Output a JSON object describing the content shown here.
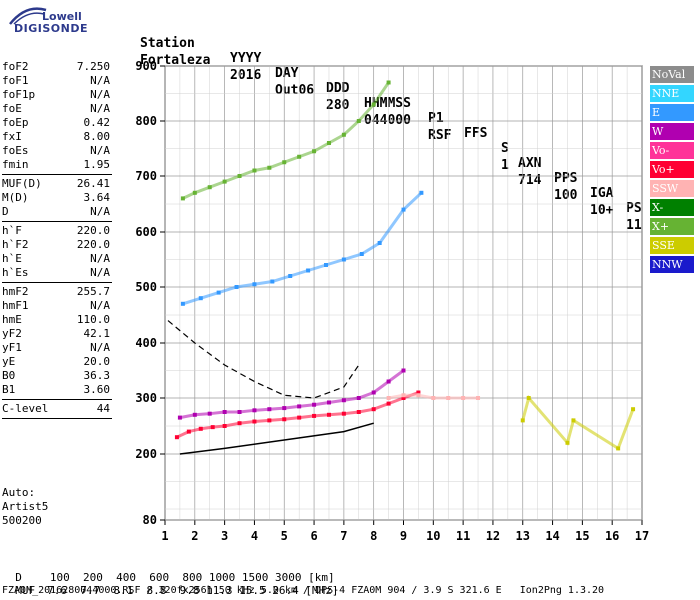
{
  "logo": {
    "top": "Lowell",
    "main": "DIGISONDE"
  },
  "header": {
    "row1": [
      "Station",
      "YYYY",
      "DAY",
      "DDD",
      "HHMMSS",
      "P1",
      "FFS",
      "S",
      "AXN",
      "PPS",
      "IGA",
      "PS"
    ],
    "row2": [
      "Fortaleza",
      "2016",
      "Out06",
      "280",
      "044000",
      "RSF",
      "",
      "1",
      "714",
      "100",
      "10+",
      "11"
    ]
  },
  "params": [
    {
      "label": "foF2",
      "value": "7.250"
    },
    {
      "label": "foF1",
      "value": "N/A"
    },
    {
      "label": "foF1p",
      "value": "N/A"
    },
    {
      "label": "foE",
      "value": "N/A"
    },
    {
      "label": "foEp",
      "value": "0.42"
    },
    {
      "label": "fxI",
      "value": "8.00"
    },
    {
      "label": "foEs",
      "value": "N/A"
    },
    {
      "label": "fmin",
      "value": "1.95"
    },
    {
      "label": "MUF(D)",
      "value": "26.41"
    },
    {
      "label": "M(D)",
      "value": "3.64"
    },
    {
      "label": "D",
      "value": "N/A"
    },
    {
      "label": "h`F",
      "value": "220.0"
    },
    {
      "label": "h`F2",
      "value": "220.0"
    },
    {
      "label": "h`E",
      "value": "N/A"
    },
    {
      "label": "h`Es",
      "value": "N/A"
    },
    {
      "label": "hmF2",
      "value": "255.7"
    },
    {
      "label": "hmF1",
      "value": "N/A"
    },
    {
      "label": "hmE",
      "value": "110.0"
    },
    {
      "label": "yF2",
      "value": "42.1"
    },
    {
      "label": "yF1",
      "value": "N/A"
    },
    {
      "label": "yE",
      "value": "20.0"
    },
    {
      "label": "B0",
      "value": "36.3"
    },
    {
      "label": "B1",
      "value": "3.60"
    },
    {
      "label": "C-level",
      "value": "44"
    }
  ],
  "auto": {
    "line1": "Auto:",
    "line2": "Artist5",
    "line3": "500200"
  },
  "legend": [
    {
      "label": "NoVal",
      "color": "#8c8c8c"
    },
    {
      "label": "NNE",
      "color": "#33d6ff"
    },
    {
      "label": "E",
      "color": "#3399ff"
    },
    {
      "label": "W",
      "color": "#b000b0"
    },
    {
      "label": "Vo-",
      "color": "#ff3399"
    },
    {
      "label": "Vo+",
      "color": "#ff0033"
    },
    {
      "label": "SSW",
      "color": "#ffb3b3"
    },
    {
      "label": "X-",
      "color": "#008000"
    },
    {
      "label": "X+",
      "color": "#66b333"
    },
    {
      "label": "SSE",
      "color": "#cccc00"
    },
    {
      "label": "NNW",
      "color": "#1a1acc"
    }
  ],
  "chart_data": {
    "type": "scatter",
    "title": "",
    "xlabel": "",
    "ylabel": "",
    "xlim": [
      1,
      17
    ],
    "ylim": [
      80,
      900
    ],
    "x_ticks": [
      1,
      2,
      3,
      4,
      5,
      6,
      7,
      8,
      9,
      10,
      11,
      12,
      13,
      14,
      15,
      16,
      17
    ],
    "y_ticks": [
      80,
      200,
      300,
      400,
      500,
      600,
      700,
      800,
      900
    ],
    "grid": true,
    "legend_position": "right",
    "series": [
      {
        "color": "#ff0033",
        "x": [
          1.4,
          1.8,
          2.2,
          2.6,
          3.0,
          3.5,
          4.0,
          4.5,
          5.0,
          5.5,
          6.0,
          6.5,
          7.0,
          7.5,
          8.0,
          8.5,
          9.0,
          9.5
        ],
        "y": [
          230,
          240,
          245,
          248,
          250,
          255,
          258,
          260,
          262,
          265,
          268,
          270,
          272,
          275,
          280,
          290,
          300,
          310
        ]
      },
      {
        "color": "#b000b0",
        "x": [
          1.5,
          2.0,
          2.5,
          3.0,
          3.5,
          4.0,
          4.5,
          5.0,
          5.5,
          6.0,
          6.5,
          7.0,
          7.5,
          8.0,
          8.5,
          9.0
        ],
        "y": [
          265,
          270,
          272,
          275,
          275,
          278,
          280,
          282,
          285,
          288,
          292,
          296,
          300,
          310,
          330,
          350
        ]
      },
      {
        "color": "#3399ff",
        "x": [
          1.6,
          2.2,
          2.8,
          3.4,
          4.0,
          4.6,
          5.2,
          5.8,
          6.4,
          7.0,
          7.6,
          8.2,
          9.0,
          9.6
        ],
        "y": [
          470,
          480,
          490,
          500,
          505,
          510,
          520,
          530,
          540,
          550,
          560,
          580,
          640,
          670
        ]
      },
      {
        "color": "#66b333",
        "x": [
          1.6,
          2.0,
          2.5,
          3.0,
          3.5,
          4.0,
          4.5,
          5.0,
          5.5,
          6.0,
          6.5,
          7.0,
          7.5,
          8.0,
          8.5
        ],
        "y": [
          660,
          670,
          680,
          690,
          700,
          710,
          715,
          725,
          735,
          745,
          760,
          775,
          800,
          830,
          870
        ]
      },
      {
        "color": "#ffb3b3",
        "x": [
          8.5,
          9.0,
          9.5,
          10.0,
          10.5,
          11.0,
          11.5
        ],
        "y": [
          300,
          305,
          305,
          300,
          300,
          300,
          300
        ]
      },
      {
        "color": "#cccc00",
        "x": [
          13.0,
          13.2,
          14.5,
          14.7,
          16.2,
          16.7
        ],
        "y": [
          260,
          300,
          220,
          260,
          210,
          280
        ]
      }
    ],
    "profile": {
      "x": [
        1.5,
        3,
        5,
        7,
        8
      ],
      "y": [
        200,
        210,
        225,
        240,
        255
      ]
    },
    "dashed_curve": {
      "x": [
        1.1,
        2,
        3,
        4,
        5,
        6,
        7,
        7.5
      ],
      "y": [
        440,
        400,
        360,
        330,
        305,
        300,
        320,
        360
      ]
    }
  },
  "axis_text": {
    "d_label": "D",
    "d_values": "100  200  400  600  800 1000 1500 3000 [km]",
    "muf_label": "MUF",
    "muf_values": "7.6  7.7  8.1  8.8  9.8 11.3 15.5 26.4 [MHz]"
  },
  "footer": "FZA0M_2016280044000.RSF / 320fx256h 50 kHz 5.0 km / DPS-4 FZA0M 904 / 3.9 S 321.6 E   Ion2Png 1.3.20"
}
